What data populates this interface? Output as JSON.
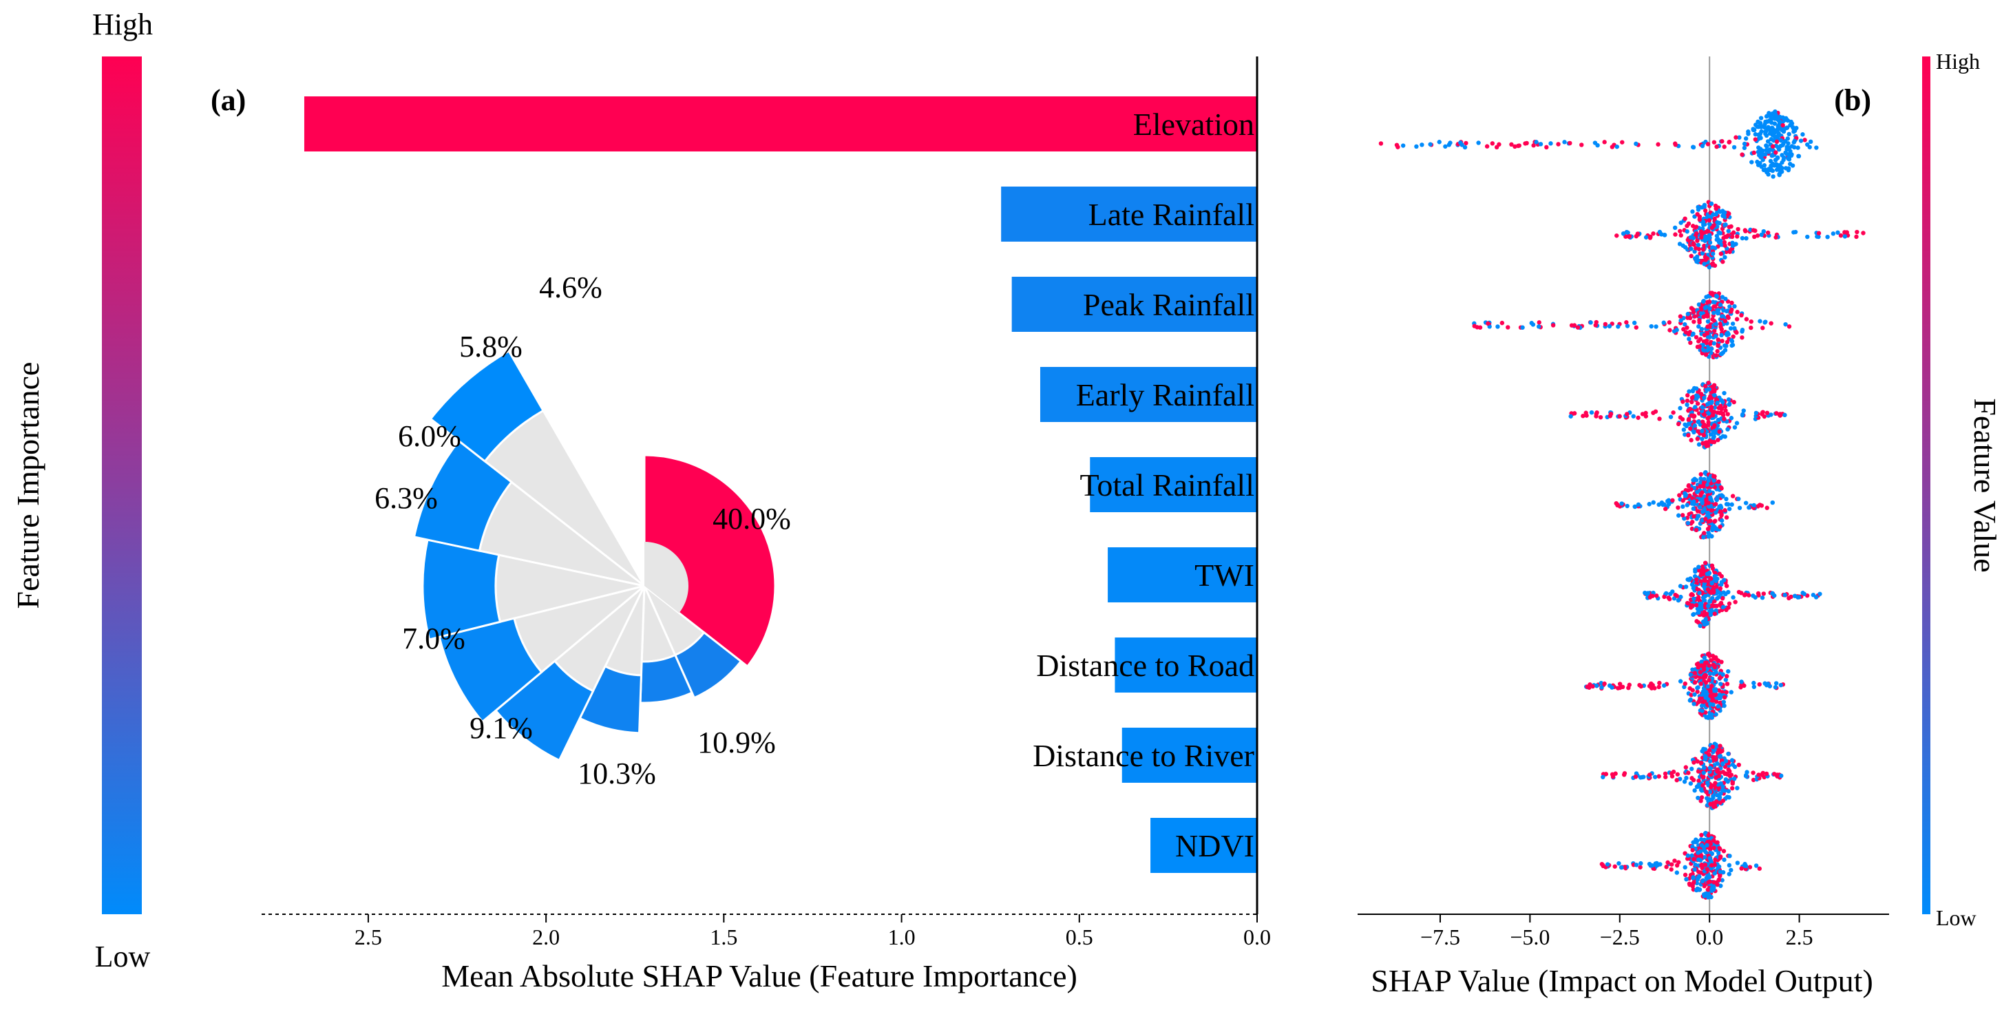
{
  "left_colorbar": {
    "high_label": "High",
    "low_label": "Low",
    "title": "Feature Importance",
    "color_high": "#ff0052",
    "color_low": "#008bfb"
  },
  "right_colorbar": {
    "high_label": "High",
    "low_label": "Low",
    "title": "Feature Value",
    "color_high": "#ff0052",
    "color_low": "#008bfb"
  },
  "chart_data": [
    {
      "panel": "(a)",
      "type": "bar",
      "orientation": "horizontal",
      "x_inverted": true,
      "xlabel": "Mean Absolute SHAP Value (Feature Importance)",
      "xlim": [
        2.8,
        0.0
      ],
      "xticks": [
        2.5,
        2.0,
        1.5,
        1.0,
        0.5,
        0.0
      ],
      "xtick_labels": [
        "2.5",
        "2.0",
        "1.5",
        "1.0",
        "0.5",
        "0.0"
      ],
      "categories": [
        "Elevation",
        "Late Rainfall",
        "Peak Rainfall",
        "Early Rainfall",
        "Total Rainfall",
        "TWI",
        "Distance to Road",
        "Distance to River",
        "NDVI"
      ],
      "values": [
        2.68,
        0.72,
        0.69,
        0.61,
        0.47,
        0.42,
        0.4,
        0.38,
        0.3
      ]
    },
    {
      "panel": "(a)",
      "type": "pie",
      "subtype": "polar-area",
      "categories": [
        "Elevation",
        "Late Rainfall",
        "Peak Rainfall",
        "Early Rainfall",
        "Total Rainfall",
        "TWI",
        "Distance to Road",
        "Distance to River",
        "NDVI"
      ],
      "values": [
        40.0,
        10.9,
        10.3,
        9.1,
        7.0,
        6.3,
        6.0,
        5.8,
        4.6
      ],
      "labels": [
        "40.0%",
        "10.9%",
        "10.3%",
        "9.1%",
        "7.0%",
        "6.3%",
        "6.0%",
        "5.8%",
        "4.6%"
      ]
    },
    {
      "panel": "(b)",
      "type": "scatter",
      "subtype": "beeswarm",
      "xlabel": "SHAP Value (Impact on Model Output)",
      "xlim": [
        -9.8,
        5.0
      ],
      "xticks": [
        -7.5,
        -5.0,
        -2.5,
        0.0,
        2.5
      ],
      "xtick_labels": [
        "−7.5",
        "−5.0",
        "−2.5",
        "0.0",
        "2.5"
      ],
      "categories": [
        "Elevation",
        "Late Rainfall",
        "Peak Rainfall",
        "Early Rainfall",
        "Total Rainfall",
        "TWI",
        "Distance to Road",
        "Distance to River",
        "NDVI"
      ],
      "series": [
        {
          "name": "Elevation",
          "min": -9.2,
          "max": 3.0,
          "center": 1.8,
          "spread": 0.6
        },
        {
          "name": "Late Rainfall",
          "min": -2.6,
          "max": 4.3,
          "center": 0.0,
          "spread": 0.6
        },
        {
          "name": "Peak Rainfall",
          "min": -6.7,
          "max": 2.3,
          "center": 0.1,
          "spread": 0.6
        },
        {
          "name": "Early Rainfall",
          "min": -3.9,
          "max": 2.1,
          "center": -0.1,
          "spread": 0.6
        },
        {
          "name": "Total Rainfall",
          "min": -2.6,
          "max": 1.8,
          "center": -0.1,
          "spread": 0.5
        },
        {
          "name": "TWI",
          "min": -1.8,
          "max": 3.1,
          "center": -0.1,
          "spread": 0.45
        },
        {
          "name": "Distance to Road",
          "min": -3.5,
          "max": 2.1,
          "center": 0.0,
          "spread": 0.45
        },
        {
          "name": "Distance to River",
          "min": -3.0,
          "max": 2.0,
          "center": 0.1,
          "spread": 0.5
        },
        {
          "name": "NDVI",
          "min": -3.0,
          "max": 1.6,
          "center": -0.1,
          "spread": 0.45
        }
      ]
    }
  ]
}
